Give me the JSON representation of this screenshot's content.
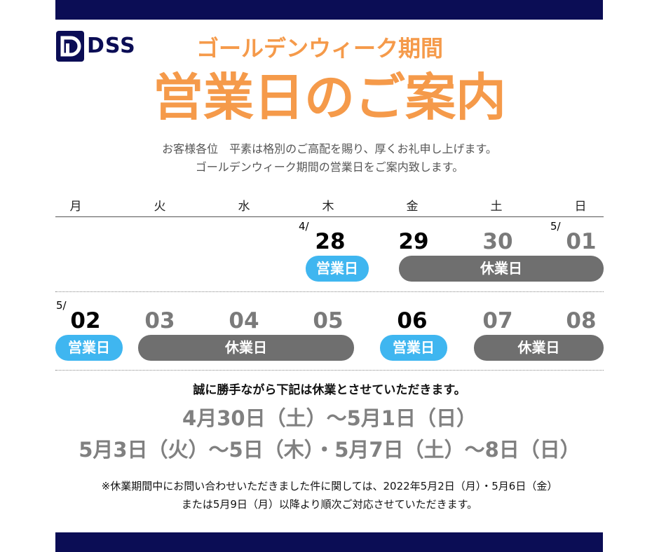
{
  "brand": {
    "logo_text": "DSS",
    "navy": "#0b0d55",
    "accent_orange": "#f59a4a",
    "work_blue": "#3fb6f0",
    "closed_grey": "#6f6f6f"
  },
  "header": {
    "subtitle": "ゴールデンウィーク期間",
    "title": "営業日のご案内",
    "intro_line1": "お客様各位　平素は格別のご高配を賜り、厚くお礼申し上げます。",
    "intro_line2": "ゴールデンウィーク期間の営業日をご案内致します。"
  },
  "calendar": {
    "weekdays": [
      "月",
      "火",
      "水",
      "木",
      "金",
      "土",
      "日"
    ],
    "week1": {
      "prefix_apr": "4/",
      "prefix_may": "5/",
      "days": [
        "28",
        "29",
        "30",
        "01"
      ],
      "work_label": "営業日",
      "closed_label": "休業日"
    },
    "week2": {
      "prefix_may": "5/",
      "days": [
        "02",
        "03",
        "04",
        "05",
        "06",
        "07",
        "08"
      ],
      "work_label_1": "営業日",
      "closed_label_1": "休業日",
      "work_label_2": "営業日",
      "closed_label_2": "休業日"
    }
  },
  "notice": {
    "lead": "誠に勝手ながら下記は休業とさせていただきます。",
    "holiday_line1": "4月30日（土）～5月1日（日）",
    "holiday_line2": "5月3日（火）～5日（木）・5月7日（土）～8日（日）",
    "footnote_line1": "※休業期間中にお問い合わせいただきました件に関しては、2022年5月2日（月）・5月6日（金）",
    "footnote_line2": "または5月9日（月）以降より順次ご対応させていただきます。"
  }
}
